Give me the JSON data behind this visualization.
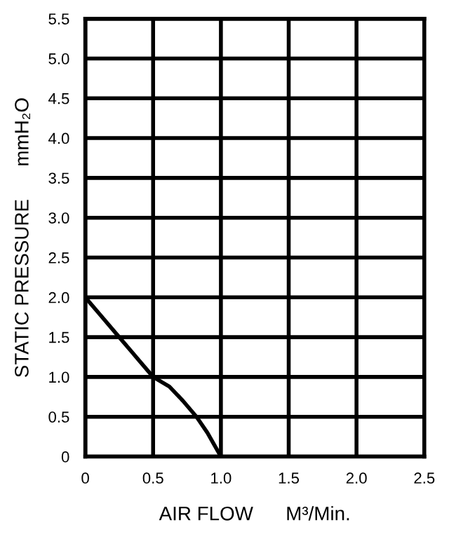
{
  "chart_data": {
    "type": "line",
    "xlabel": "AIR FLOW      M³/Min.",
    "ylabel": "STATIC PRESSURE      mmH₂O",
    "x": [
      0,
      0.1,
      0.25,
      0.35,
      0.5,
      0.62,
      0.72,
      0.82,
      0.9,
      1.0
    ],
    "series": [
      {
        "color": "#000000",
        "values": [
          2.0,
          1.8,
          1.5,
          1.3,
          1.0,
          0.88,
          0.7,
          0.5,
          0.3,
          0.0
        ]
      }
    ],
    "xlim": [
      0,
      2.5
    ],
    "ylim": [
      0,
      5.5
    ],
    "xticks": [
      0,
      0.5,
      {
        "value": 1,
        "label": "1.0"
      },
      1.5,
      {
        "value": 2,
        "label": "2.0"
      },
      2.5
    ],
    "yticks": [
      0,
      0.5,
      {
        "value": 1,
        "label": "1.0"
      },
      1.5,
      {
        "value": 2,
        "label": "2.0"
      },
      2.5,
      {
        "value": 3,
        "label": "3.0"
      },
      3.5,
      {
        "value": 4,
        "label": "4.0"
      },
      4.5,
      {
        "value": 5,
        "label": "5.0"
      },
      5.5
    ],
    "grid": true,
    "marker": "none",
    "line_style": "solid"
  }
}
